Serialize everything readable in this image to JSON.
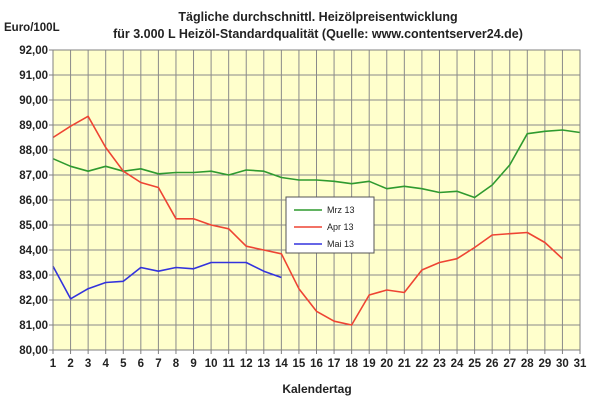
{
  "chart_data": {
    "type": "line",
    "title": "Tägliche durchschnittl. Heizölpreisentwicklung",
    "subtitle": "für 3.000 L Heizöl-Standardqualität (Quelle: www.contentserver24.de)",
    "ylabel": "Euro/100L",
    "xlabel": "Kalendertag",
    "ylim": [
      80,
      92
    ],
    "xlim": [
      1,
      31
    ],
    "y_ticks": [
      "80,00",
      "81,00",
      "82,00",
      "83,00",
      "84,00",
      "85,00",
      "86,00",
      "87,00",
      "88,00",
      "89,00",
      "90,00",
      "91,00",
      "92,00"
    ],
    "x_ticks": [
      "1",
      "2",
      "3",
      "4",
      "5",
      "6",
      "7",
      "8",
      "9",
      "10",
      "11",
      "12",
      "13",
      "14",
      "15",
      "16",
      "17",
      "18",
      "19",
      "20",
      "21",
      "22",
      "23",
      "24",
      "25",
      "26",
      "27",
      "28",
      "29",
      "30",
      "31"
    ],
    "grid": true,
    "legend_position": "center",
    "plot_background": "#ffffcc",
    "series": [
      {
        "name": "Mrz 13",
        "color": "#2f9a2f",
        "x": [
          1,
          2,
          3,
          4,
          5,
          6,
          7,
          8,
          9,
          10,
          11,
          12,
          13,
          14,
          15,
          16,
          17,
          18,
          19,
          20,
          21,
          22,
          23,
          24,
          25,
          26,
          27,
          28,
          29,
          30,
          31
        ],
        "values": [
          87.65,
          87.35,
          87.15,
          87.35,
          87.15,
          87.25,
          87.05,
          87.1,
          87.1,
          87.15,
          87.0,
          87.2,
          87.15,
          86.9,
          86.8,
          86.8,
          86.75,
          86.65,
          86.75,
          86.45,
          86.55,
          86.45,
          86.3,
          86.35,
          86.1,
          86.6,
          87.4,
          88.65,
          88.75,
          88.8,
          88.7
        ]
      },
      {
        "name": "Apr 13",
        "color": "#ee4433",
        "x": [
          1,
          2,
          3,
          4,
          5,
          6,
          7,
          8,
          9,
          10,
          11,
          12,
          13,
          14,
          15,
          16,
          17,
          18,
          19,
          20,
          21,
          22,
          23,
          24,
          25,
          26,
          27,
          28,
          29,
          30
        ],
        "values": [
          88.5,
          88.95,
          89.35,
          88.1,
          87.15,
          86.7,
          86.5,
          85.25,
          85.25,
          85.0,
          84.85,
          84.15,
          84.0,
          83.85,
          82.45,
          81.55,
          81.15,
          81.0,
          82.2,
          82.4,
          82.3,
          83.2,
          83.5,
          83.65,
          84.1,
          84.6,
          84.65,
          84.7,
          84.3,
          83.65
        ]
      },
      {
        "name": "Mai 13",
        "color": "#3333dd",
        "x": [
          1,
          2,
          3,
          4,
          5,
          6,
          7,
          8,
          9,
          10,
          11,
          12,
          13,
          14
        ],
        "values": [
          83.35,
          82.05,
          82.45,
          82.7,
          82.75,
          83.3,
          83.15,
          83.3,
          83.25,
          83.5,
          83.5,
          83.5,
          83.15,
          82.9
        ]
      }
    ]
  }
}
